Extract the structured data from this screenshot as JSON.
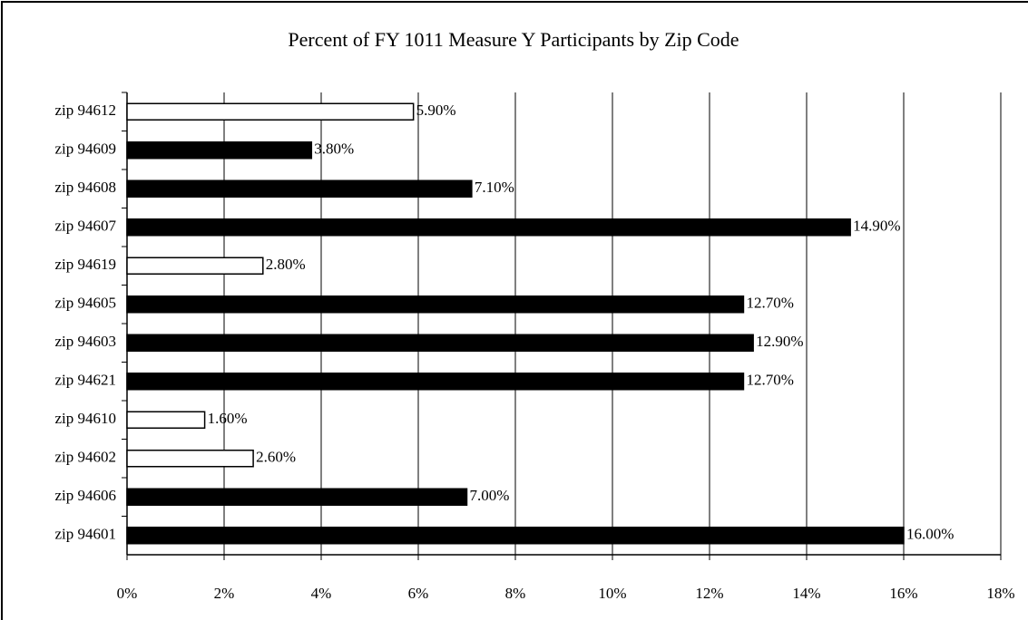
{
  "chart_data": {
    "type": "bar",
    "orientation": "horizontal",
    "title": "Percent of FY 1011 Measure Y Participants by Zip Code",
    "categories": [
      "zip 94612",
      "zip 94609",
      "zip 94608",
      "zip 94607",
      "zip 94619",
      "zip 94605",
      "zip 94603",
      "zip 94621",
      "zip 94610",
      "zip 94602",
      "zip 94606",
      "zip 94601"
    ],
    "values": [
      5.9,
      3.8,
      7.1,
      14.9,
      2.8,
      12.7,
      12.9,
      12.7,
      1.6,
      2.6,
      7.0,
      16.0
    ],
    "value_labels": [
      "5.90%",
      "3.80%",
      "7.10%",
      "14.90%",
      "2.80%",
      "12.70%",
      "12.90%",
      "12.70%",
      "1.60%",
      "2.60%",
      "7.00%",
      "16.00%"
    ],
    "colors": [
      "#ffffff",
      "#000000",
      "#000000",
      "#000000",
      "#ffffff",
      "#000000",
      "#000000",
      "#000000",
      "#ffffff",
      "#ffffff",
      "#000000",
      "#000000"
    ],
    "xlim": [
      0,
      18
    ],
    "xticks": [
      {
        "value": 0,
        "label": "0%"
      },
      {
        "value": 2,
        "label": "2%"
      },
      {
        "value": 4,
        "label": "4%"
      },
      {
        "value": 6,
        "label": "6%"
      },
      {
        "value": 8,
        "label": "8%"
      },
      {
        "value": 10,
        "label": "10%"
      },
      {
        "value": 12,
        "label": "12%"
      },
      {
        "value": 14,
        "label": "14%"
      },
      {
        "value": 16,
        "label": "16%"
      },
      {
        "value": 18,
        "label": "18%"
      }
    ],
    "grid": true
  }
}
